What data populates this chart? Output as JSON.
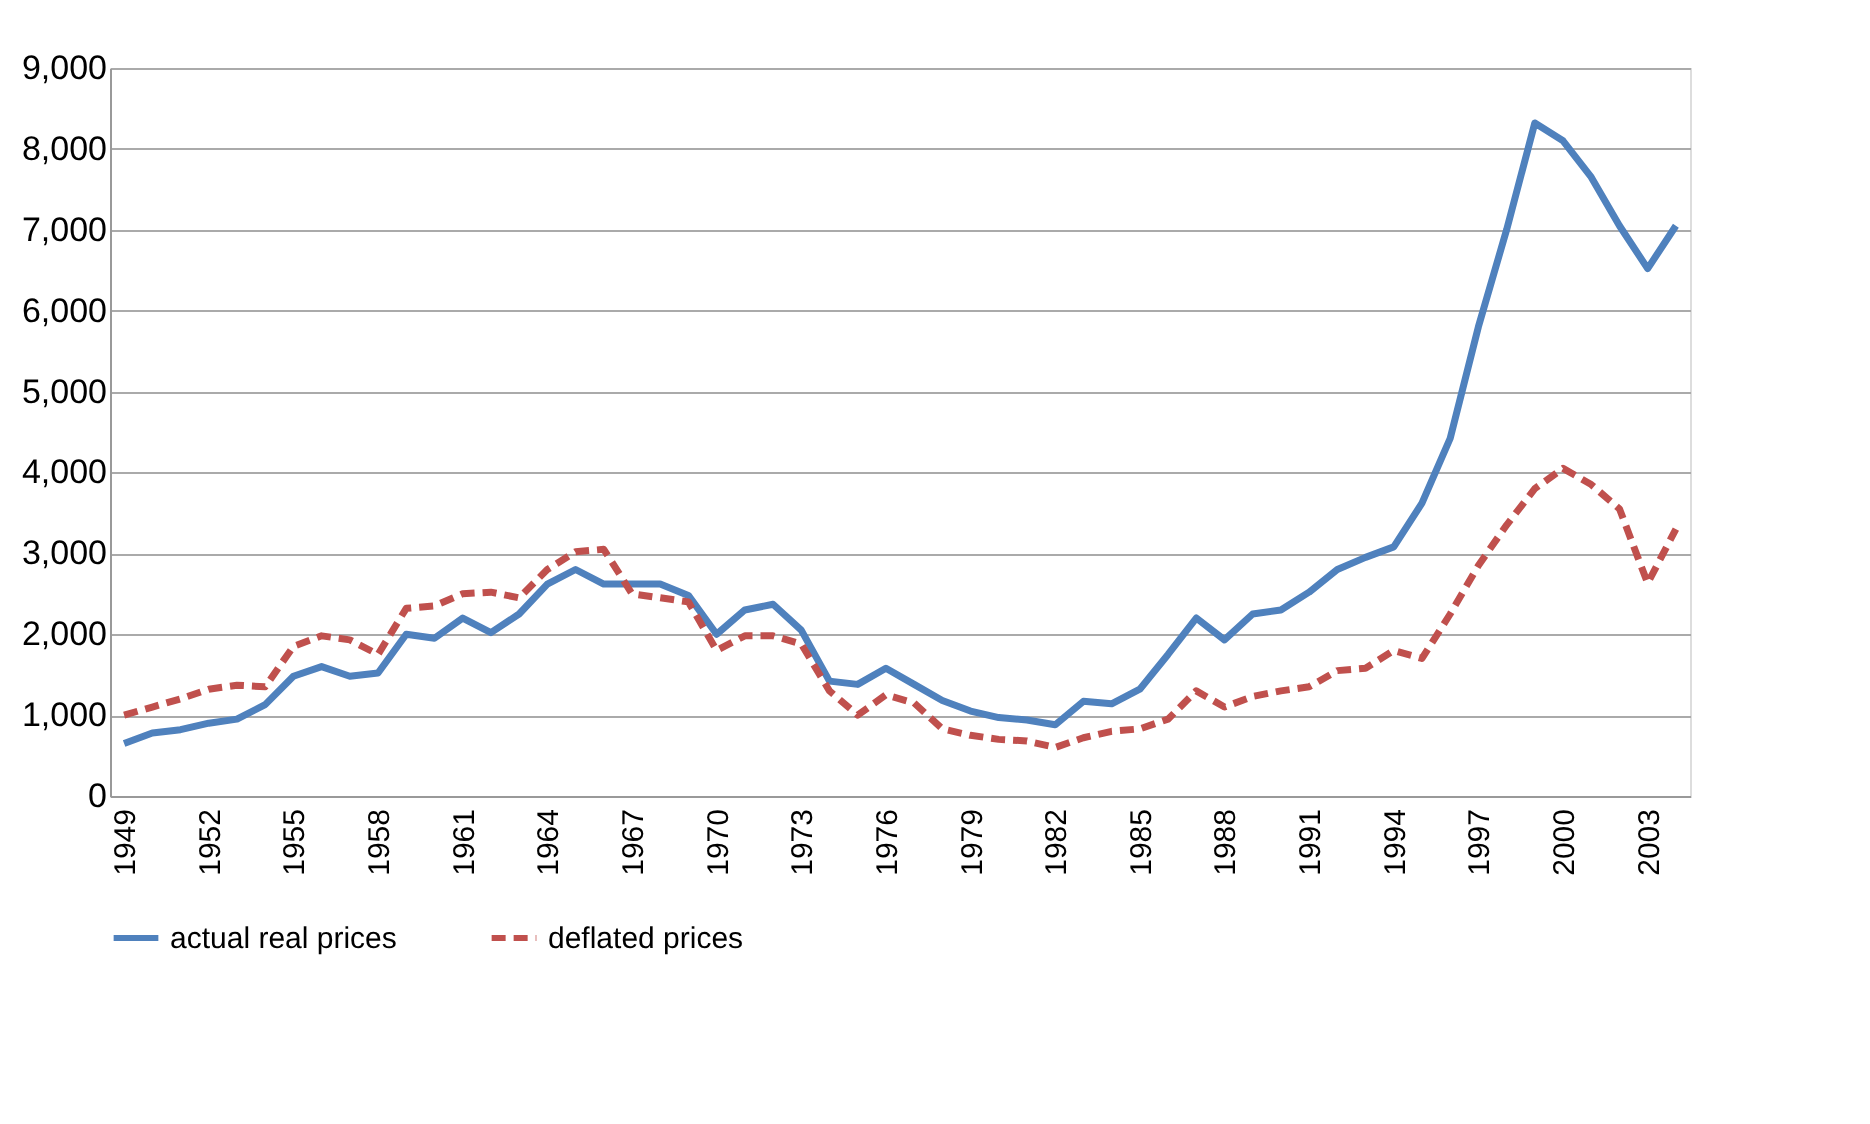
{
  "chart_data": {
    "type": "line",
    "categories": [
      "1949",
      null,
      null,
      "1952",
      null,
      null,
      "1955",
      null,
      null,
      "1958",
      null,
      null,
      "1961",
      null,
      null,
      "1964",
      null,
      null,
      "1967",
      null,
      null,
      "1970",
      null,
      null,
      "1973",
      null,
      null,
      "1976",
      null,
      null,
      "1979",
      null,
      null,
      "1982",
      null,
      null,
      "1985",
      null,
      null,
      "1988",
      null,
      null,
      "1991",
      null,
      null,
      "1994",
      null,
      null,
      "1997",
      null,
      null,
      "2000",
      null,
      null,
      "2003",
      null
    ],
    "series": [
      {
        "name": "actual real prices",
        "color": "#4f81bd",
        "line_style": "solid",
        "values": [
          650,
          780,
          820,
          900,
          950,
          1130,
          1480,
          1600,
          1480,
          1520,
          2000,
          1950,
          2200,
          2020,
          2250,
          2620,
          2800,
          2620,
          2620,
          2620,
          2480,
          2000,
          2300,
          2370,
          2050,
          1420,
          1380,
          1580,
          1380,
          1180,
          1050,
          970,
          940,
          880,
          1170,
          1140,
          1320,
          1750,
          2200,
          1930,
          2250,
          2300,
          2520,
          2800,
          2950,
          3080,
          3620,
          4420,
          5800,
          7000,
          8320,
          8100,
          7650,
          7050,
          6520,
          7050
        ]
      },
      {
        "name": "deflated prices",
        "color": "#c0504d",
        "line_style": "dashed",
        "values": [
          1000,
          1100,
          1200,
          1320,
          1370,
          1350,
          1850,
          1980,
          1930,
          1750,
          2320,
          2350,
          2500,
          2520,
          2450,
          2800,
          3020,
          3050,
          2500,
          2450,
          2400,
          1800,
          1980,
          1980,
          1880,
          1300,
          1000,
          1250,
          1150,
          830,
          750,
          700,
          680,
          600,
          720,
          800,
          830,
          950,
          1300,
          1100,
          1230,
          1300,
          1350,
          1550,
          1580,
          1800,
          1700,
          2250,
          2850,
          3350,
          3800,
          4050,
          3850,
          3550,
          2630,
          3300
        ]
      }
    ],
    "ylim": [
      0,
      9000
    ],
    "yticks": [
      0,
      {
        "value": 1000,
        "label": "1,000"
      },
      {
        "value": 2000,
        "label": "2,000"
      },
      {
        "value": 3000,
        "label": "3,000"
      },
      {
        "value": 4000,
        "label": "4,000"
      },
      {
        "value": 5000,
        "label": "5,000"
      },
      {
        "value": 6000,
        "label": "6,000"
      },
      {
        "value": 7000,
        "label": "7,000"
      },
      {
        "value": 8000,
        "label": "8,000"
      },
      {
        "value": 9000,
        "label": "9,000"
      }
    ],
    "grid": "y",
    "legend": "bottom",
    "marker": "none"
  }
}
